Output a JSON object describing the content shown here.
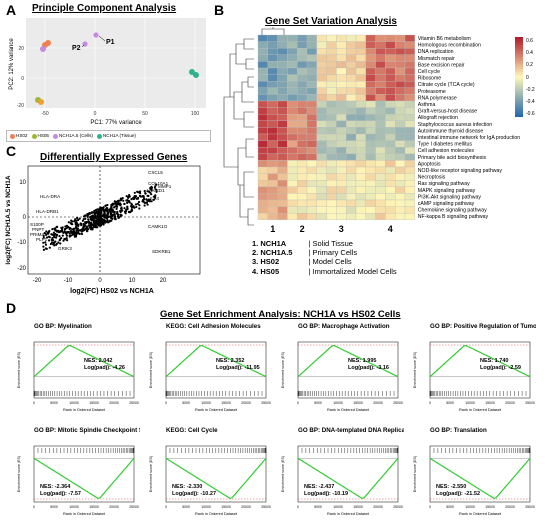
{
  "panel_letters": {
    "a": "A",
    "b": "B",
    "c": "C",
    "d": "D"
  },
  "panelA": {
    "title": "Principle Component Analysis",
    "xlabel": "PC1: 77% variance",
    "ylabel": "PC2: 12% variance",
    "point_labels": [
      "P1",
      "P2"
    ],
    "xticks": [
      "-50",
      "0",
      "50",
      "100"
    ],
    "yticks": [
      "-20",
      "0",
      "20"
    ],
    "legend": [
      {
        "label": "HS02",
        "color": "#f08050"
      },
      {
        "label": "HS05",
        "color": "#9ab833"
      },
      {
        "label": "NCH1A.5 (Cells)",
        "color": "#c58be3"
      },
      {
        "label": "NCH1A (Tissue)",
        "color": "#2bb38f"
      }
    ]
  },
  "panelB": {
    "title": "Gene Set Variation Analysis",
    "row_labels": [
      "Vitamin B6 metabolism",
      "Homologous recombination",
      "DNA replication",
      "Mismatch repair",
      "Base excision repair",
      "Cell cycle",
      "Ribosome",
      "Citrate cycle (TCA cycle)",
      "Proteasome",
      "RNA polymerase",
      "Asthma",
      "Graft-versus-host disease",
      "Allograft rejection",
      "Staphylococcus aureus infection",
      "Autoimmune thyroid disease",
      "Intestinal immune network for IgA production",
      "Type I diabetes mellitus",
      "Cell adhesion molecules",
      "Primary bile acid biosynthesis",
      "Apoptosis",
      "NOD-like receptor signaling pathway",
      "Necroptosis",
      "Ras signaling pathway",
      "MAPK signaling pathway",
      "PI3K-Akt signaling pathway",
      "cAMP signaling pathway",
      "Chemokine signaling pathway",
      "NF-kappa B signaling pathway"
    ],
    "column_groups": [
      "1",
      "2",
      "3",
      "4"
    ],
    "scale_ticks": [
      "0.6",
      "0.4",
      "0.2",
      "0",
      "-0.2",
      "-0.4",
      "-0.6"
    ],
    "key": [
      {
        "num": "1.",
        "name": "NCH1A",
        "desc": "| Solid Tissue"
      },
      {
        "num": "2.",
        "name": "NCH1A.5",
        "desc": "| Primary Cells"
      },
      {
        "num": "3.",
        "name": "HS02",
        "desc": "| Model Cells"
      },
      {
        "num": "4.",
        "name": "HS05",
        "desc": "| Immortalized Model Cells"
      }
    ]
  },
  "panelC": {
    "title": "Differentially Expressed Genes",
    "xlabel": "log2(FC) HS02 vs NCH1A",
    "ylabel": "log2(FC) NCH1A.5 vs NCH1A",
    "xticks": [
      "-20",
      "-10",
      "0",
      "10",
      "20"
    ],
    "yticks": [
      "10",
      "0",
      "-10",
      "-20"
    ],
    "genes": [
      "CXCL5",
      "COL10A1",
      "MMP1",
      "ANKRD1",
      "IL24",
      "HLA-DRA",
      "HLA-DRB1",
      "CAMK1G",
      "S100P",
      "PNPT",
      "PRIMA1",
      "PLP1",
      "GRIK3",
      "SDKRB1"
    ]
  },
  "panelD": {
    "title": "Gene Set Enrichment Analysis: NCH1A vs HS02 Cells",
    "ylabel": "Enrichment score (ES)",
    "xlabel": "Rank in Ordered Dataset",
    "xticks": [
      "0",
      "5000",
      "10000",
      "15000",
      "20000",
      "25000"
    ],
    "plots": [
      {
        "title": "GO BP: Myelination",
        "nes": "NES: 2.042",
        "padj": "Log(padj): -4.26",
        "dir": "up"
      },
      {
        "title": "KEGG: Cell Adhesion Molecules",
        "nes": "NES: 2.352",
        "padj": "Log(padj): -11.95",
        "dir": "up"
      },
      {
        "title": "GO BP: Macrophage Activation",
        "nes": "NES: 1.995",
        "padj": "Log(padj): -3.16",
        "dir": "up"
      },
      {
        "title": "GO BP: Positive Regulation of Tumor Necrosis Factor Production",
        "nes": "NES: 1.740",
        "padj": "Log(padj): -2.59",
        "dir": "up"
      },
      {
        "title": "GO BP: Mitotic Spindle Checkpoint Signaling",
        "nes": "NES: -2.364",
        "padj": "Log(padj): -7.57",
        "dir": "down"
      },
      {
        "title": "KEGG: Cell Cycle",
        "nes": "NES: -2.330",
        "padj": "Log(padj): -10.27",
        "dir": "down"
      },
      {
        "title": "GO BP: DNA-templated DNA Replication",
        "nes": "NES: -2.437",
        "padj": "Log(padj): -10.19",
        "dir": "down"
      },
      {
        "title": "GO BP: Translation",
        "nes": "NES: -2.550",
        "padj": "Log(padj): -21.52",
        "dir": "down"
      }
    ]
  },
  "colors": {
    "heat_high": "#b2182b",
    "heat_mid": "#fff7b8",
    "heat_low": "#2166ac",
    "gsea_line": "#33cc33"
  }
}
